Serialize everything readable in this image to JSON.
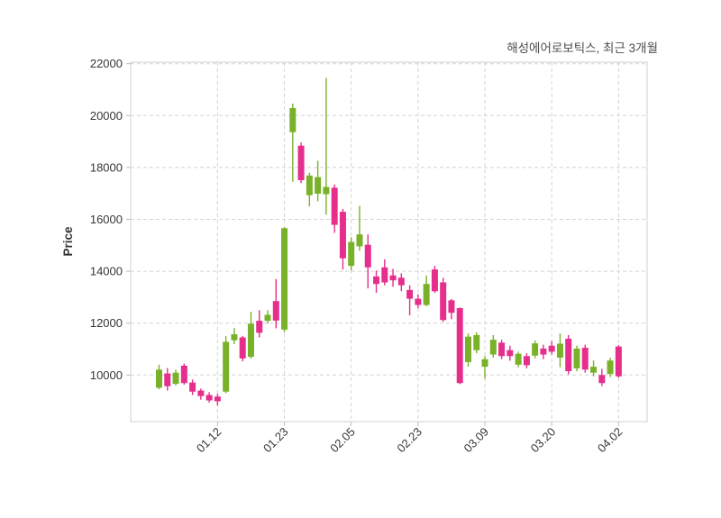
{
  "title": "해성에어로보틱스, 최근 3개월",
  "chart_data": {
    "type": "candlestick",
    "title": "해성에어로보틱스, 최근 3개월",
    "ylabel": "Price",
    "xlabel": "",
    "grid": true,
    "legend_position": "none",
    "ylim": [
      8200,
      22050
    ],
    "y_ticks": [
      22000,
      20000,
      18000,
      16000,
      14000,
      12000,
      10000
    ],
    "x_tick_labels": [
      "01.12",
      "01.23",
      "02.05",
      "02.23",
      "03.09",
      "03.20",
      "04.02"
    ],
    "x_tick_candle_indices": [
      7,
      15,
      23,
      31,
      39,
      47,
      55
    ],
    "colors": {
      "up": "#79b22a",
      "down": "#e62e8d",
      "grid": "#d4d4d4",
      "border": "#d8d8d8",
      "tick": "#bdbdbd",
      "axis_text": "#363636",
      "title_text": "#4d4d4d"
    },
    "candles_format": [
      "open",
      "high",
      "low",
      "close"
    ],
    "candles": [
      [
        9510,
        10400,
        9450,
        10210
      ],
      [
        10060,
        10270,
        9400,
        9570
      ],
      [
        9660,
        10210,
        9600,
        10090
      ],
      [
        10360,
        10440,
        9630,
        9690
      ],
      [
        9710,
        9830,
        9230,
        9360
      ],
      [
        9400,
        9480,
        9050,
        9190
      ],
      [
        9230,
        9340,
        8940,
        9020
      ],
      [
        9170,
        9280,
        8820,
        8990
      ],
      [
        9360,
        11500,
        9300,
        11280
      ],
      [
        11340,
        11810,
        11190,
        11570
      ],
      [
        11450,
        11510,
        10530,
        10640
      ],
      [
        10700,
        12440,
        10640,
        11980
      ],
      [
        12090,
        12500,
        11450,
        11630
      ],
      [
        12090,
        12500,
        11980,
        12320
      ],
      [
        12850,
        13700,
        11800,
        12100
      ],
      [
        11750,
        15700,
        11650,
        15660
      ],
      [
        19360,
        20460,
        17450,
        20290
      ],
      [
        18840,
        18960,
        17400,
        17510
      ],
      [
        16930,
        17800,
        16500,
        17690
      ],
      [
        16990,
        18260,
        16700,
        17630
      ],
      [
        16970,
        21450,
        16180,
        17250
      ],
      [
        17220,
        17340,
        15480,
        15790
      ],
      [
        16290,
        16400,
        14070,
        14500
      ],
      [
        14210,
        15310,
        14030,
        15130
      ],
      [
        14960,
        16520,
        14790,
        15420
      ],
      [
        15020,
        15420,
        13340,
        14150
      ],
      [
        13800,
        14030,
        13170,
        13510
      ],
      [
        14150,
        14460,
        13460,
        13570
      ],
      [
        13840,
        14090,
        13400,
        13650
      ],
      [
        13750,
        13920,
        13230,
        13460
      ],
      [
        13280,
        13460,
        12300,
        12940
      ],
      [
        12940,
        13110,
        12570,
        12700
      ],
      [
        12700,
        13840,
        12650,
        13510
      ],
      [
        14070,
        14210,
        13170,
        13230
      ],
      [
        13570,
        13750,
        12050,
        12120
      ],
      [
        12880,
        12930,
        12150,
        12400
      ],
      [
        12580,
        12600,
        9650,
        9690
      ],
      [
        10500,
        11600,
        10320,
        11480
      ],
      [
        10960,
        11650,
        10840,
        11540
      ],
      [
        10320,
        10730,
        9860,
        10610
      ],
      [
        10790,
        11540,
        10670,
        11360
      ],
      [
        11250,
        11360,
        10610,
        10730
      ],
      [
        10960,
        11130,
        10550,
        10730
      ],
      [
        10400,
        10900,
        10300,
        10820
      ],
      [
        10730,
        10840,
        10260,
        10380
      ],
      [
        10750,
        11330,
        10640,
        11220
      ],
      [
        11020,
        11170,
        10610,
        10790
      ],
      [
        11130,
        11310,
        10790,
        10900
      ],
      [
        10670,
        11600,
        10300,
        11210
      ],
      [
        11400,
        11540,
        10030,
        10150
      ],
      [
        10260,
        11130,
        10150,
        11020
      ],
      [
        11050,
        11170,
        10090,
        10210
      ],
      [
        10090,
        10560,
        9950,
        10320
      ],
      [
        10000,
        10240,
        9570,
        9690
      ],
      [
        10040,
        10670,
        9920,
        10560
      ],
      [
        11100,
        11150,
        9900,
        9950
      ]
    ]
  }
}
